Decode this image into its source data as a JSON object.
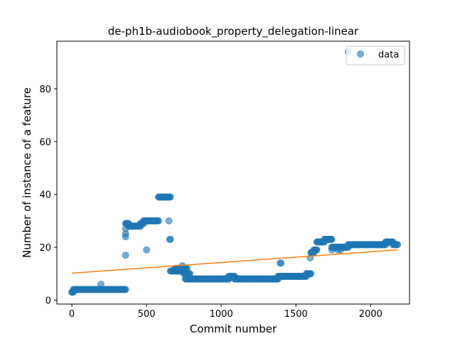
{
  "chart_data": {
    "type": "scatter",
    "title": "de-ph1b-audiobook_property_delegation-linear",
    "xlabel": "Commit number",
    "ylabel": "Number of instance of a feature",
    "xlim": [
      -100,
      2260
    ],
    "ylim": [
      -1.5,
      98
    ],
    "xticks": [
      0,
      500,
      1000,
      1500,
      2000
    ],
    "yticks": [
      0,
      20,
      40,
      60,
      80
    ],
    "grid": false,
    "legend": {
      "placement": "top-right",
      "entries": [
        "data"
      ]
    },
    "colors": {
      "data": "#1f77b4",
      "fit": "#ff7f0e"
    },
    "series": [
      {
        "name": "data",
        "kind": "scatter",
        "segments": [
          {
            "x0": 0,
            "x1": 10,
            "y": 3
          },
          {
            "x0": 10,
            "x1": 360,
            "y": 4
          },
          {
            "x0": 360,
            "x1": 380,
            "y": 29
          },
          {
            "x0": 380,
            "x1": 460,
            "y": 28
          },
          {
            "x0": 460,
            "x1": 480,
            "y": 29
          },
          {
            "x0": 480,
            "x1": 580,
            "y": 30
          },
          {
            "x0": 580,
            "x1": 660,
            "y": 39
          },
          {
            "x0": 660,
            "x1": 730,
            "y": 11
          },
          {
            "x0": 690,
            "x1": 770,
            "y": 12
          },
          {
            "x0": 750,
            "x1": 790,
            "y": 10
          },
          {
            "x0": 770,
            "x1": 1050,
            "y": 8
          },
          {
            "x0": 1050,
            "x1": 1090,
            "y": 9
          },
          {
            "x0": 1090,
            "x1": 1380,
            "y": 8
          },
          {
            "x0": 1380,
            "x1": 1570,
            "y": 9
          },
          {
            "x0": 1570,
            "x1": 1600,
            "y": 10
          },
          {
            "x0": 1600,
            "x1": 1620,
            "y": 18
          },
          {
            "x0": 1620,
            "x1": 1640,
            "y": 19
          },
          {
            "x0": 1640,
            "x1": 1690,
            "y": 22
          },
          {
            "x0": 1690,
            "x1": 1740,
            "y": 23
          },
          {
            "x0": 1740,
            "x1": 1850,
            "y": 20
          },
          {
            "x0": 1850,
            "x1": 2100,
            "y": 21
          },
          {
            "x0": 2100,
            "x1": 2150,
            "y": 22
          },
          {
            "x0": 2150,
            "x1": 2180,
            "y": 21
          }
        ],
        "extra_points": [
          [
            5,
            3
          ],
          [
            195,
            6
          ],
          [
            360,
            17
          ],
          [
            360,
            24
          ],
          [
            360,
            25
          ],
          [
            360,
            27
          ],
          [
            500,
            19
          ],
          [
            650,
            30
          ],
          [
            655,
            23
          ],
          [
            660,
            23
          ],
          [
            740,
            13
          ],
          [
            760,
            8
          ],
          [
            765,
            8
          ],
          [
            1050,
            8
          ],
          [
            1395,
            14
          ],
          [
            1400,
            14
          ],
          [
            1595,
            16
          ],
          [
            1610,
            18
          ],
          [
            1740,
            19
          ],
          [
            1780,
            19
          ],
          [
            1800,
            19
          ],
          [
            1850,
            94
          ]
        ]
      },
      {
        "name": "",
        "kind": "line",
        "x": [
          0,
          2180
        ],
        "y": [
          10.2,
          19.0
        ]
      }
    ]
  }
}
